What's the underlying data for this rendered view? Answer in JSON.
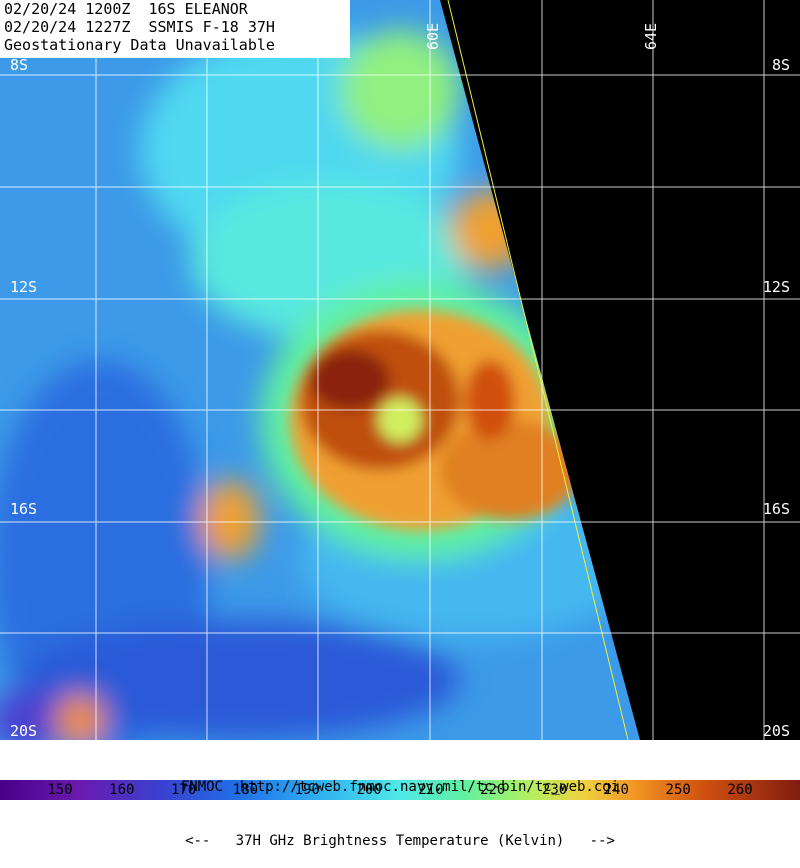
{
  "header": {
    "lines": [
      "02/20/24 1200Z  16S ELEANOR",
      "02/20/24 1227Z  SSMIS F-18 37H",
      "Geostationary Data Unavailable"
    ]
  },
  "map": {
    "lat_labels": [
      "8S",
      "12S",
      "16S",
      "20S"
    ],
    "lon_labels": [
      "60E",
      "64E"
    ]
  },
  "footer": {
    "source": "FNMOC  http://tcweb.fnmoc.navy.mil/tc-bin/tc_web.cgi",
    "legend_title": "<--   37H GHz Brightness Temperature (Kelvin)   -->"
  },
  "colorbar": {
    "ticks": [
      150,
      160,
      170,
      180,
      190,
      200,
      210,
      220,
      230,
      240,
      250,
      260
    ]
  }
}
